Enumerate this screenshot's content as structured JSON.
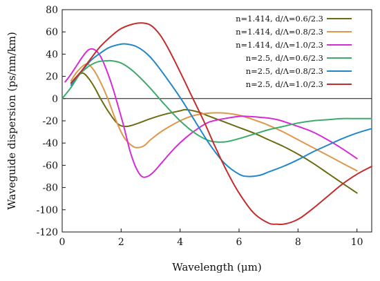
{
  "chart_data": {
    "type": "line",
    "title": "",
    "xlabel": "Wavelength (μm)",
    "ylabel": "Waveguide dispersion (ps/nm/km)",
    "xlim": [
      0,
      10.5
    ],
    "ylim": [
      -120,
      80
    ],
    "xticks": [
      0,
      2,
      4,
      6,
      8,
      10
    ],
    "yticks": [
      80,
      60,
      40,
      20,
      0,
      -20,
      -40,
      -60,
      -80,
      -100,
      -120
    ],
    "grid": false,
    "zero_line": true,
    "legend_position": "top-right",
    "series": [
      {
        "name": "n=1.414, d/Λ=0.6/2.3",
        "color": "#6b6b10",
        "x": [
          0.3,
          0.5,
          0.7,
          0.9,
          1.1,
          1.3,
          1.6,
          1.9,
          2.2,
          2.6,
          3.0,
          3.5,
          4.0,
          4.2,
          4.6,
          5.0,
          5.5,
          6.0,
          6.5,
          7.0,
          7.5,
          8.0,
          8.5,
          9.0,
          9.5,
          10.0
        ],
        "y": [
          14,
          20,
          23,
          18,
          10,
          0,
          -13,
          -23,
          -25,
          -22,
          -18,
          -14,
          -11,
          -10,
          -12,
          -16,
          -21,
          -26,
          -31,
          -37,
          -43,
          -50,
          -58,
          -67,
          -76,
          -85
        ]
      },
      {
        "name": "n=1.414, d/Λ=0.8/2.3",
        "color": "#e0964a",
        "x": [
          0.3,
          0.5,
          0.8,
          1.0,
          1.2,
          1.5,
          1.8,
          2.1,
          2.4,
          2.6,
          2.8,
          3.0,
          3.4,
          4.0,
          4.5,
          5.0,
          5.5,
          6.0,
          6.5,
          7.0,
          7.5,
          8.0,
          8.5,
          9.0,
          9.5,
          10.0
        ],
        "y": [
          16,
          24,
          31,
          28,
          20,
          3,
          -18,
          -35,
          -43,
          -44,
          -42,
          -37,
          -29,
          -20,
          -15,
          -13,
          -13,
          -15,
          -19,
          -24,
          -30,
          -37,
          -44,
          -51,
          -58,
          -65
        ]
      },
      {
        "name": "n=1.414, d/Λ=1.0/2.3",
        "color": "#d62ad6",
        "x": [
          0.1,
          0.3,
          0.5,
          0.7,
          0.9,
          1.1,
          1.3,
          1.5,
          1.7,
          1.9,
          2.1,
          2.3,
          2.5,
          2.7,
          2.9,
          3.1,
          3.4,
          3.8,
          4.2,
          4.6,
          5.0,
          5.5,
          6.0,
          6.3,
          6.8,
          7.3,
          8.0,
          8.5,
          9.0,
          9.5,
          10.0
        ],
        "y": [
          15,
          22,
          30,
          38,
          44,
          44,
          38,
          26,
          11,
          -7,
          -26,
          -47,
          -62,
          -70,
          -70,
          -66,
          -57,
          -45,
          -35,
          -27,
          -21,
          -18,
          -16,
          -16,
          -17,
          -19,
          -25,
          -30,
          -37,
          -45,
          -54
        ]
      },
      {
        "name": "n=2.5, d/Λ=0.6/2.3",
        "color": "#3aab6b",
        "x": [
          0.0,
          0.3,
          0.6,
          0.9,
          1.2,
          1.5,
          1.7,
          2.0,
          2.3,
          2.6,
          3.0,
          3.5,
          4.0,
          4.5,
          5.0,
          5.5,
          6.0,
          6.5,
          7.0,
          7.5,
          8.0,
          8.5,
          9.0,
          9.5,
          10.0,
          10.5
        ],
        "y": [
          0,
          10,
          22,
          29,
          33,
          34,
          34,
          32,
          27,
          20,
          9,
          -6,
          -20,
          -31,
          -38,
          -39,
          -36,
          -32,
          -28,
          -25,
          -22,
          -20,
          -19,
          -18,
          -18,
          -18
        ]
      },
      {
        "name": "n=2.5, d/Λ=0.8/2.3",
        "color": "#1f86c9",
        "x": [
          0.3,
          0.5,
          0.8,
          1.0,
          1.3,
          1.6,
          2.0,
          2.2,
          2.5,
          2.8,
          3.1,
          3.5,
          4.0,
          4.5,
          5.0,
          5.5,
          6.0,
          6.3,
          6.7,
          7.0,
          7.5,
          8.0,
          8.5,
          9.0,
          9.5,
          10.0,
          10.5
        ],
        "y": [
          12,
          20,
          29,
          35,
          41,
          46,
          49,
          49,
          47,
          42,
          34,
          20,
          1,
          -20,
          -41,
          -58,
          -68,
          -70,
          -69,
          -66,
          -61,
          -55,
          -48,
          -42,
          -36,
          -31,
          -27
        ]
      },
      {
        "name": "n=2.5, d/Λ=1.0/2.3",
        "color": "#c42b2b",
        "x": [
          0.3,
          0.6,
          1.0,
          1.3,
          1.7,
          2.0,
          2.4,
          2.7,
          3.0,
          3.3,
          3.6,
          4.0,
          4.4,
          4.8,
          5.2,
          5.6,
          6.0,
          6.5,
          7.0,
          7.3,
          7.5,
          7.8,
          8.1,
          8.5,
          9.0,
          9.5,
          10.0,
          10.5
        ],
        "y": [
          14,
          23,
          37,
          47,
          57,
          63,
          67,
          68,
          66,
          58,
          45,
          24,
          2,
          -20,
          -44,
          -66,
          -85,
          -103,
          -112,
          -113,
          -113,
          -111,
          -107,
          -99,
          -88,
          -77,
          -68,
          -61
        ]
      }
    ]
  }
}
